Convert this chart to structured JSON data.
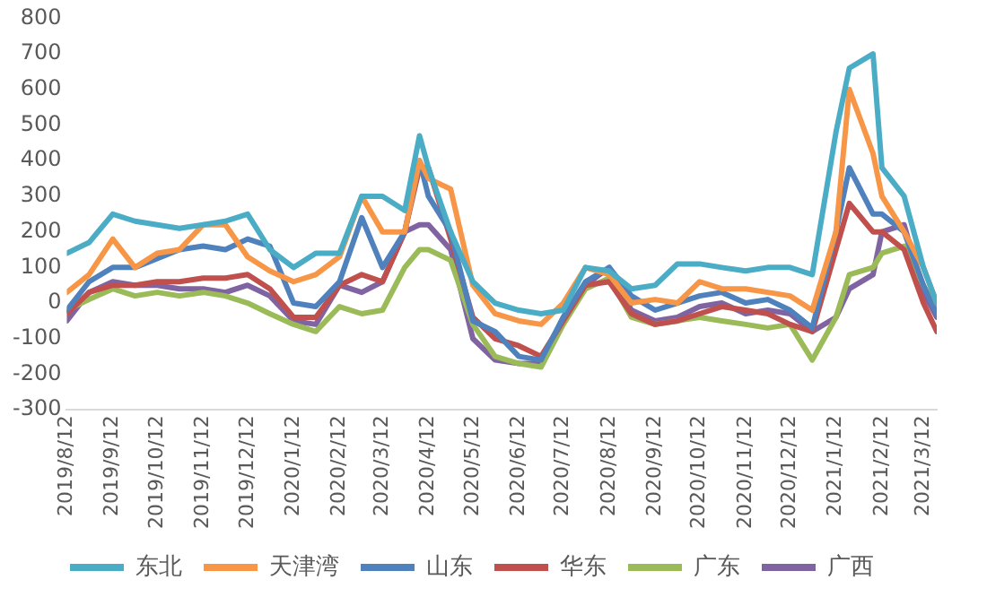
{
  "chart_data": {
    "type": "line",
    "legend": "bottom",
    "grid": false,
    "marker": "none",
    "line_style": "solid",
    "x": [
      "2019-08-12",
      "2019-08-27",
      "2019-09-12",
      "2019-09-27",
      "2019-10-12",
      "2019-10-27",
      "2019-11-12",
      "2019-11-27",
      "2019-12-12",
      "2019-12-27",
      "2020-01-12",
      "2020-01-27",
      "2020-02-12",
      "2020-02-27",
      "2020-03-12",
      "2020-03-27",
      "2020-04-06",
      "2020-04-12",
      "2020-04-27",
      "2020-05-12",
      "2020-05-27",
      "2020-06-12",
      "2020-06-27",
      "2020-07-12",
      "2020-07-27",
      "2020-08-12",
      "2020-08-27",
      "2020-09-12",
      "2020-09-27",
      "2020-10-12",
      "2020-10-27",
      "2020-11-12",
      "2020-11-27",
      "2020-12-12",
      "2020-12-27",
      "2021-01-12",
      "2021-01-21",
      "2021-02-06",
      "2021-02-12",
      "2021-02-27",
      "2021-03-12",
      "2021-03-21"
    ],
    "xlim": [
      "2019-08-12",
      "2021-03-21"
    ],
    "xticks": [
      {
        "value": "2019-08-12",
        "label": "2019/8/12"
      },
      {
        "value": "2019-09-12",
        "label": "2019/9/12"
      },
      {
        "value": "2019-10-12",
        "label": "2019/10/12"
      },
      {
        "value": "2019-11-12",
        "label": "2019/11/12"
      },
      {
        "value": "2019-12-12",
        "label": "2019/12/12"
      },
      {
        "value": "2020-01-12",
        "label": "2020/1/12"
      },
      {
        "value": "2020-02-12",
        "label": "2020/2/12"
      },
      {
        "value": "2020-03-12",
        "label": "2020/3/12"
      },
      {
        "value": "2020-04-12",
        "label": "2020/4/12"
      },
      {
        "value": "2020-05-12",
        "label": "2020/5/12"
      },
      {
        "value": "2020-06-12",
        "label": "2020/6/12"
      },
      {
        "value": "2020-07-12",
        "label": "2020/7/12"
      },
      {
        "value": "2020-08-12",
        "label": "2020/8/12"
      },
      {
        "value": "2020-09-12",
        "label": "2020/9/12"
      },
      {
        "value": "2020-10-12",
        "label": "2020/10/12"
      },
      {
        "value": "2020-11-12",
        "label": "2020/11/12"
      },
      {
        "value": "2020-12-12",
        "label": "2020/12/12"
      },
      {
        "value": "2021-01-12",
        "label": "2021/1/12"
      },
      {
        "value": "2021-02-12",
        "label": "2021/2/12"
      },
      {
        "value": "2021-03-12",
        "label": "2021/3/12"
      }
    ],
    "ylim": [
      -300,
      800
    ],
    "yticks": [
      -300,
      -200,
      -100,
      0,
      100,
      200,
      300,
      400,
      500,
      600,
      700,
      800
    ],
    "series": [
      {
        "name": "东北",
        "color": "#4bacc6",
        "values": [
          140,
          170,
          250,
          230,
          220,
          210,
          220,
          230,
          250,
          150,
          100,
          140,
          140,
          300,
          300,
          260,
          470,
          380,
          200,
          60,
          0,
          -20,
          -30,
          -20,
          100,
          90,
          40,
          50,
          110,
          110,
          100,
          90,
          100,
          100,
          80,
          480,
          660,
          700,
          380,
          300,
          100,
          0
        ]
      },
      {
        "name": "天津湾",
        "color": "#f79646",
        "values": [
          30,
          80,
          180,
          100,
          140,
          150,
          220,
          220,
          130,
          90,
          60,
          80,
          130,
          300,
          200,
          200,
          400,
          350,
          320,
          50,
          -30,
          -50,
          -60,
          0,
          100,
          80,
          0,
          10,
          0,
          60,
          40,
          40,
          30,
          20,
          -20,
          200,
          600,
          420,
          300,
          200,
          100,
          0
        ]
      },
      {
        "name": "山东",
        "color": "#4f81bd",
        "values": [
          -20,
          60,
          100,
          100,
          125,
          150,
          160,
          150,
          180,
          160,
          0,
          -10,
          60,
          240,
          100,
          200,
          400,
          300,
          200,
          -50,
          -80,
          -150,
          -160,
          -40,
          60,
          100,
          20,
          -20,
          0,
          20,
          30,
          0,
          10,
          -20,
          -70,
          200,
          380,
          250,
          250,
          200,
          50,
          -30
        ]
      },
      {
        "name": "华东",
        "color": "#c0504d",
        "values": [
          -30,
          30,
          50,
          50,
          60,
          60,
          70,
          70,
          80,
          40,
          -40,
          -40,
          50,
          80,
          60,
          200,
          380,
          380,
          180,
          -40,
          -100,
          -120,
          -150,
          -50,
          50,
          60,
          -30,
          -60,
          -50,
          -30,
          -10,
          -20,
          -30,
          -60,
          -80,
          150,
          280,
          200,
          200,
          150,
          0,
          -80
        ]
      },
      {
        "name": "广东",
        "color": "#9bbb59",
        "values": [
          -20,
          10,
          40,
          20,
          30,
          20,
          30,
          20,
          0,
          -30,
          -60,
          -80,
          -10,
          -30,
          -20,
          100,
          150,
          150,
          120,
          -60,
          -150,
          -170,
          -180,
          -60,
          40,
          70,
          -40,
          -60,
          -50,
          -40,
          -50,
          -60,
          -70,
          -60,
          -160,
          -40,
          80,
          100,
          140,
          160,
          50,
          -20
        ]
      },
      {
        "name": "广西",
        "color": "#8064a2",
        "values": [
          -50,
          30,
          60,
          50,
          50,
          40,
          40,
          30,
          50,
          20,
          -50,
          -60,
          50,
          30,
          60,
          200,
          220,
          220,
          150,
          -100,
          -160,
          -170,
          -170,
          -40,
          50,
          100,
          -20,
          -50,
          -40,
          -10,
          0,
          -30,
          -20,
          -30,
          -80,
          -40,
          40,
          80,
          200,
          220,
          30,
          -40
        ]
      }
    ]
  }
}
